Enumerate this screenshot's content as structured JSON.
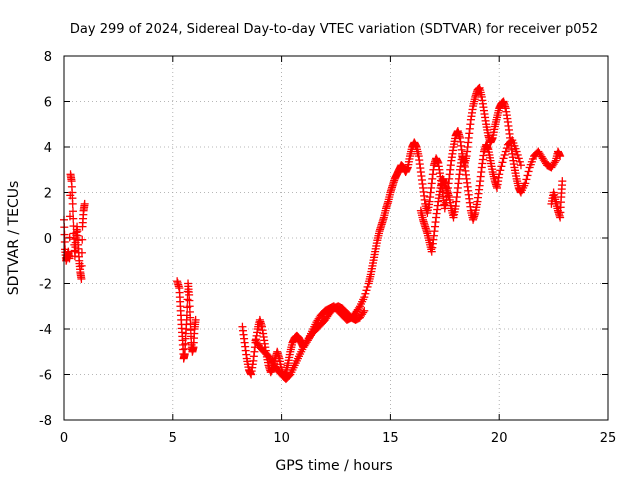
{
  "chart_data": {
    "type": "scatter",
    "title": "Day 299 of 2024, Sidereal Day-to-day VTEC variation (SDTVAR) for receiver p052",
    "xlabel": "GPS time / hours",
    "ylabel": "SDTVAR / TECUs",
    "xlim": [
      0,
      25
    ],
    "ylim": [
      -8,
      8
    ],
    "xticks": [
      0,
      5,
      10,
      15,
      20,
      25
    ],
    "yticks": [
      -8,
      -6,
      -4,
      -2,
      0,
      2,
      4,
      6,
      8
    ],
    "grid": true,
    "marker": "+",
    "color": "#ff0000",
    "series": [
      {
        "name": "SDTVAR",
        "segments": [
          {
            "x": [
              0.0,
              0.05,
              0.1,
              0.15,
              0.2,
              0.25,
              0.3,
              0.35,
              0.4,
              0.45,
              0.5,
              0.55,
              0.6,
              0.65,
              0.7,
              0.75,
              0.8,
              0.85,
              0.9,
              0.95
            ],
            "y": [
              0.8,
              -0.5,
              -1.0,
              -0.8,
              -0.6,
              -0.9,
              2.8,
              2.5,
              1.5,
              0.2,
              -0.8,
              0.0,
              0.5,
              -0.3,
              -1.0,
              -1.5,
              -1.8,
              0.5,
              1.2,
              1.5
            ]
          },
          {
            "x": [
              5.2,
              5.3,
              5.35,
              5.4,
              5.45,
              5.5,
              5.55,
              5.6,
              5.65,
              5.7,
              5.75,
              5.8,
              5.85,
              5.9,
              5.95,
              6.0,
              6.05
            ],
            "y": [
              -1.9,
              -2.2,
              -3.0,
              -3.8,
              -4.5,
              -5.3,
              -5.1,
              -4.2,
              -3.4,
              -2.0,
              -2.5,
              -3.5,
              -4.6,
              -5.0,
              -4.8,
              -4.0,
              -3.6
            ]
          },
          {
            "x": [
              8.2,
              8.3,
              8.4,
              8.5,
              8.6,
              8.7,
              8.8,
              8.9,
              9.0,
              9.1,
              9.2,
              9.3,
              9.4,
              9.5,
              9.6,
              9.7,
              9.8,
              9.9,
              10.0,
              10.1,
              10.2,
              10.3,
              10.4,
              10.5,
              10.6,
              10.7,
              10.8,
              10.9,
              11.0,
              11.2,
              11.4,
              11.6,
              11.8,
              12.0,
              12.2,
              12.4,
              12.6,
              12.8,
              13.0,
              13.2,
              13.4,
              13.6,
              13.8,
              14.0,
              14.1,
              14.2,
              14.3,
              14.4,
              14.5,
              14.6,
              14.7,
              14.8,
              14.9,
              15.0,
              15.1,
              15.2,
              15.3,
              15.4,
              15.5,
              15.6,
              15.7,
              15.8,
              15.9,
              16.0,
              16.1,
              16.2,
              16.3,
              16.4,
              16.5,
              16.6,
              16.7,
              16.8,
              16.9,
              17.0,
              17.1,
              17.2,
              17.3,
              17.4,
              17.5,
              17.6,
              17.7,
              17.8,
              17.9,
              18.0,
              18.1,
              18.2,
              18.3,
              18.4,
              18.5,
              18.6,
              18.7,
              18.8,
              18.9,
              19.0,
              19.1,
              19.2,
              19.3,
              19.4,
              19.5,
              19.6,
              19.7,
              19.8,
              19.9,
              20.0,
              20.1,
              20.2,
              20.3,
              20.4,
              20.5,
              20.6,
              20.7,
              20.8,
              20.9,
              21.0,
              21.2,
              21.4,
              21.6,
              21.8,
              22.0,
              22.2,
              22.4,
              22.6,
              22.7,
              22.8
            ],
            "y": [
              -3.9,
              -4.6,
              -5.3,
              -5.8,
              -6.0,
              -5.4,
              -4.6,
              -4.0,
              -3.6,
              -3.9,
              -4.5,
              -5.1,
              -5.6,
              -5.9,
              -5.7,
              -5.3,
              -5.0,
              -5.3,
              -5.8,
              -6.1,
              -5.9,
              -5.5,
              -5.0,
              -4.6,
              -4.4,
              -4.3,
              -4.4,
              -4.6,
              -4.8,
              -4.5,
              -4.1,
              -3.7,
              -3.4,
              -3.2,
              -3.1,
              -3.0,
              -3.2,
              -3.4,
              -3.6,
              -3.5,
              -3.3,
              -3.0,
              -2.6,
              -2.0,
              -1.6,
              -1.1,
              -0.6,
              -0.1,
              0.3,
              0.6,
              0.9,
              1.3,
              1.6,
              2.0,
              2.3,
              2.6,
              2.8,
              3.0,
              3.2,
              3.1,
              2.9,
              3.1,
              3.6,
              4.0,
              4.2,
              4.0,
              3.6,
              2.9,
              2.2,
              1.5,
              1.1,
              1.6,
              2.4,
              3.2,
              3.5,
              3.3,
              2.7,
              2.0,
              1.3,
              1.8,
              2.6,
              3.4,
              4.0,
              4.5,
              4.7,
              4.4,
              3.7,
              3.2,
              3.6,
              4.4,
              5.2,
              5.8,
              6.2,
              6.5,
              6.6,
              6.2,
              5.6,
              5.0,
              4.5,
              4.2,
              4.4,
              4.9,
              5.3,
              5.7,
              5.9,
              6.0,
              5.7,
              5.1,
              4.4,
              3.7,
              3.1,
              2.6,
              2.2,
              2.0,
              2.4,
              3.1,
              3.6,
              3.8,
              3.5,
              3.2,
              3.1,
              3.4,
              3.8,
              3.6
            ]
          },
          {
            "x": [
              8.8,
              9.0,
              9.2,
              9.4,
              9.6,
              9.8,
              10.0,
              10.2,
              10.4,
              10.6,
              10.8,
              11.0,
              11.2,
              11.4,
              11.6,
              11.8,
              12.0,
              12.2,
              12.4,
              12.6,
              12.8,
              13.0,
              13.2,
              13.4,
              13.6,
              13.8
            ],
            "y": [
              -4.5,
              -4.8,
              -5.0,
              -5.2,
              -5.5,
              -5.8,
              -6.0,
              -6.2,
              -6.0,
              -5.6,
              -5.2,
              -4.8,
              -4.5,
              -4.2,
              -4.0,
              -3.8,
              -3.6,
              -3.3,
              -3.1,
              -3.0,
              -3.1,
              -3.3,
              -3.5,
              -3.6,
              -3.5,
              -3.2
            ]
          },
          {
            "x": [
              16.4,
              16.5,
              16.6,
              16.7,
              16.8,
              16.9,
              17.0,
              17.1,
              17.2,
              17.3,
              17.4,
              17.5,
              17.6,
              17.7,
              17.8,
              17.9,
              18.0,
              18.1,
              18.2,
              18.3,
              18.4,
              18.5,
              18.6,
              18.7,
              18.8,
              18.9,
              19.0,
              19.1,
              19.2,
              19.3,
              19.4,
              19.5,
              19.6,
              19.7,
              19.8,
              19.9,
              20.0,
              20.2,
              20.4,
              20.6,
              20.8,
              21.0
            ],
            "y": [
              1.2,
              0.8,
              0.5,
              0.2,
              -0.2,
              -0.6,
              0.1,
              0.9,
              1.6,
              2.2,
              2.6,
              2.4,
              2.1,
              1.8,
              1.3,
              0.9,
              1.4,
              2.2,
              3.0,
              3.6,
              3.3,
              2.6,
              1.9,
              1.2,
              0.8,
              1.1,
              1.6,
              2.3,
              3.1,
              3.8,
              4.1,
              3.9,
              3.4,
              2.9,
              2.5,
              2.2,
              2.8,
              3.5,
              4.1,
              4.3,
              3.8,
              3.2
            ]
          },
          {
            "x": [
              22.4,
              22.5,
              22.6,
              22.7,
              22.8,
              22.85,
              22.9
            ],
            "y": [
              1.5,
              2.0,
              1.6,
              1.2,
              0.9,
              1.8,
              2.5
            ]
          }
        ]
      }
    ]
  }
}
